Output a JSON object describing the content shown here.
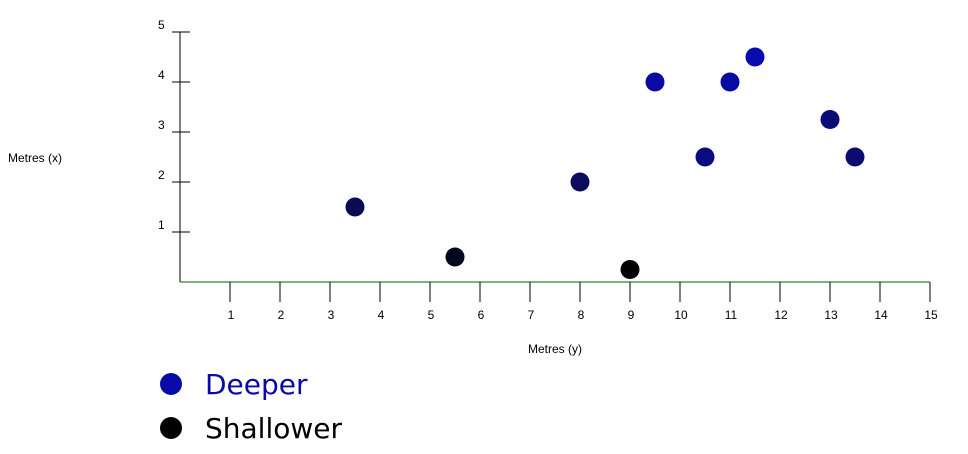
{
  "chart_data": {
    "type": "scatter",
    "xlabel": "Metres (y)",
    "ylabel": "Metres (x)",
    "xlim": [
      0,
      15
    ],
    "ylim": [
      0,
      5
    ],
    "x_ticks": [
      1,
      2,
      3,
      4,
      5,
      6,
      7,
      8,
      9,
      10,
      11,
      12,
      13,
      14,
      15
    ],
    "y_ticks": [
      1,
      2,
      3,
      4,
      5
    ],
    "grid": false,
    "axis_colors": {
      "x": "#006400",
      "y": "#000000"
    },
    "points": [
      {
        "x": 3.5,
        "y": 1.5,
        "color": "#0b0b55"
      },
      {
        "x": 5.5,
        "y": 0.5,
        "color": "#050520"
      },
      {
        "x": 8,
        "y": 2,
        "color": "#0b0b60"
      },
      {
        "x": 9,
        "y": 0.25,
        "color": "#000000"
      },
      {
        "x": 9.5,
        "y": 4,
        "color": "#0a0aa0"
      },
      {
        "x": 10.5,
        "y": 2.5,
        "color": "#0b0b80"
      },
      {
        "x": 11,
        "y": 4,
        "color": "#0a0aa5"
      },
      {
        "x": 11.5,
        "y": 4.5,
        "color": "#0a0ab0"
      },
      {
        "x": 13,
        "y": 3.25,
        "color": "#0b0b75"
      },
      {
        "x": 13.5,
        "y": 2.5,
        "color": "#0b0b70"
      }
    ],
    "legend": [
      {
        "label": "Deeper",
        "color": "#0a0aa8",
        "text_color": "#0a0aa8"
      },
      {
        "label": "Shallower",
        "color": "#000000",
        "text_color": "#000000"
      }
    ],
    "legend_placement": "bottom-left"
  }
}
